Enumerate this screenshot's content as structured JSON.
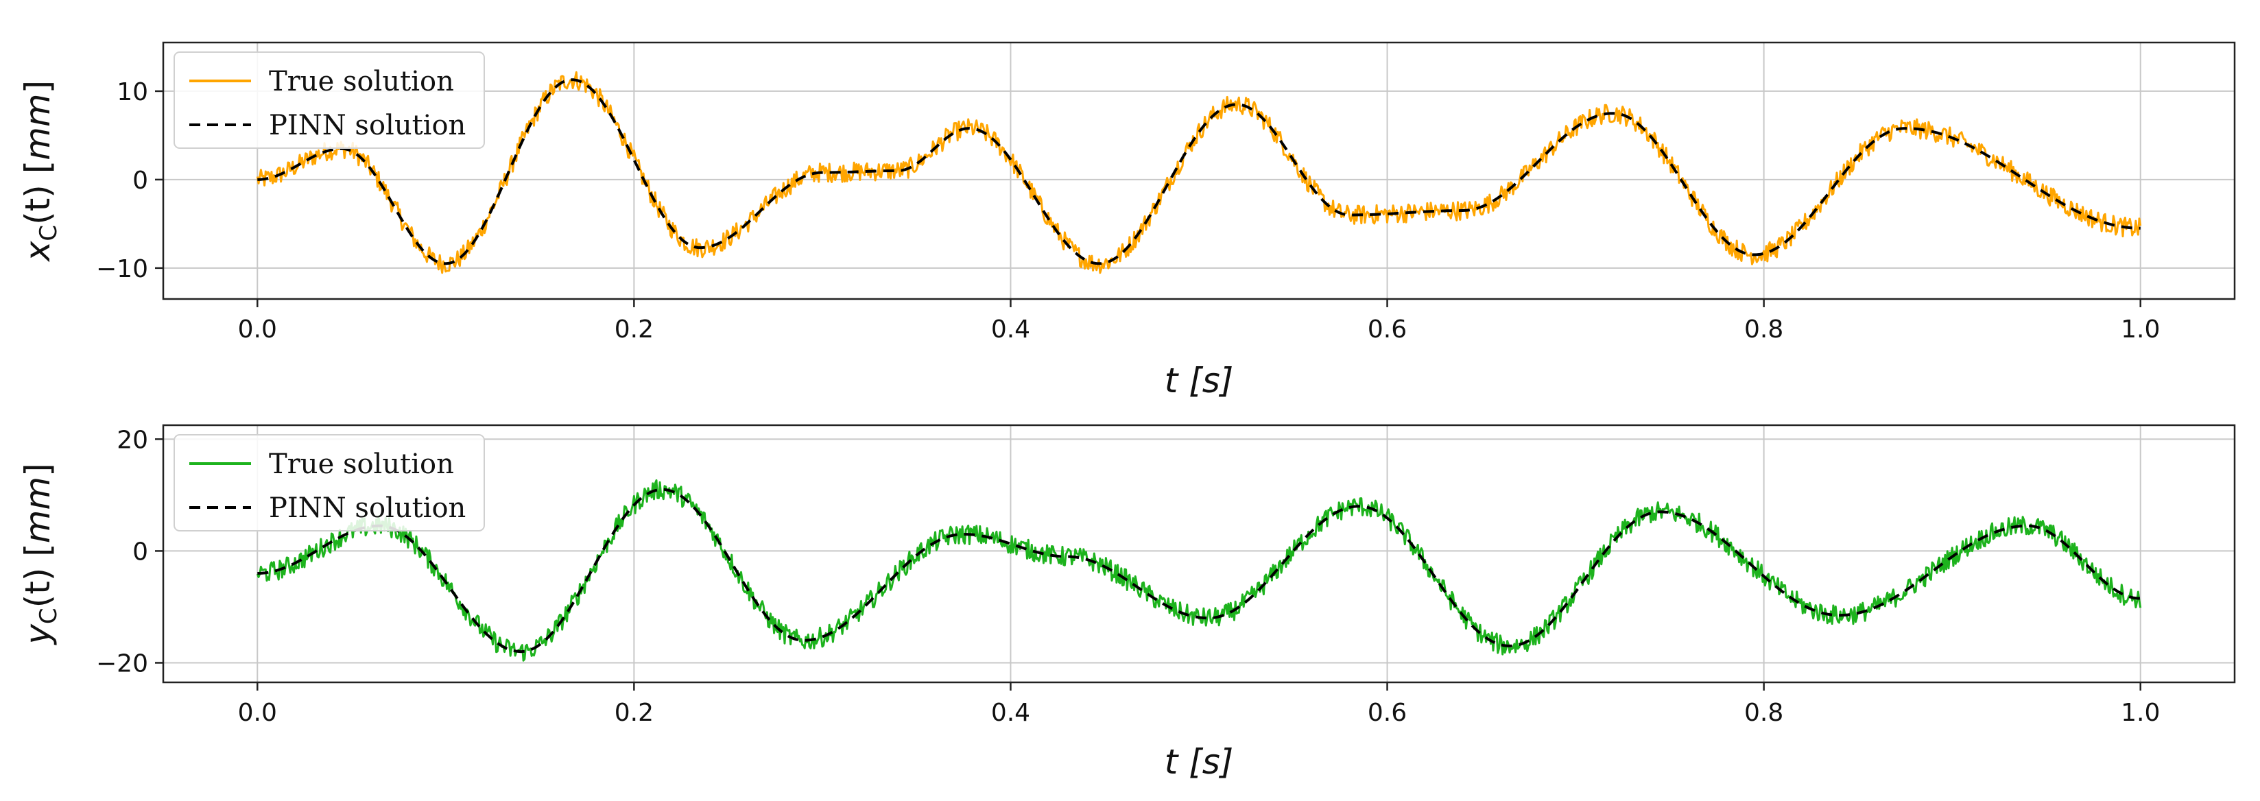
{
  "chart_data": [
    {
      "type": "line",
      "xlabel": "t [s]",
      "ylabel": "x_C(t) [mm]",
      "ylabel_parts": {
        "var": "x",
        "sub": "C",
        "arg": "(t) [",
        "unit": "mm",
        "close": "]"
      },
      "xlim": [
        -0.05,
        1.05
      ],
      "ylim": [
        -13.5,
        15.5
      ],
      "xticks": [
        0.0,
        0.2,
        0.4,
        0.6,
        0.8,
        1.0
      ],
      "xtick_labels": [
        "0.0",
        "0.2",
        "0.4",
        "0.6",
        "0.8",
        "1.0"
      ],
      "yticks": [
        -10,
        0,
        10
      ],
      "ytick_labels": [
        "−10",
        "0",
        "10"
      ],
      "grid": true,
      "legend": "top-left",
      "noise_amplitude": 1.1,
      "series": [
        {
          "name": "True solution",
          "color": "#FFA500",
          "style": "solid",
          "noisy": true,
          "x": [
            0.0,
            0.045,
            0.1,
            0.167,
            0.235,
            0.3,
            0.34,
            0.378,
            0.447,
            0.52,
            0.58,
            0.64,
            0.72,
            0.795,
            0.875,
            1.0
          ],
          "y": [
            0.0,
            3.5,
            -9.5,
            11.3,
            -7.7,
            0.8,
            1.0,
            5.8,
            -9.5,
            8.5,
            -4.0,
            -3.5,
            7.5,
            -8.5,
            5.8,
            -5.5
          ]
        },
        {
          "name": "PINN solution",
          "color": "#000000",
          "style": "dashed",
          "noisy": false,
          "x": [
            0.0,
            0.045,
            0.1,
            0.167,
            0.235,
            0.3,
            0.34,
            0.378,
            0.447,
            0.52,
            0.58,
            0.64,
            0.72,
            0.795,
            0.875,
            1.0
          ],
          "y": [
            0.0,
            3.5,
            -9.5,
            11.3,
            -7.7,
            0.8,
            1.0,
            5.8,
            -9.5,
            8.5,
            -4.0,
            -3.5,
            7.5,
            -8.5,
            5.8,
            -5.5
          ]
        }
      ]
    },
    {
      "type": "line",
      "xlabel": "t [s]",
      "ylabel": "y_C(t) [mm]",
      "ylabel_parts": {
        "var": "y",
        "sub": "C",
        "arg": "(t) [",
        "unit": "mm",
        "close": "]"
      },
      "xlim": [
        -0.05,
        1.05
      ],
      "ylim": [
        -23.5,
        22.5
      ],
      "xticks": [
        0.0,
        0.2,
        0.4,
        0.6,
        0.8,
        1.0
      ],
      "xtick_labels": [
        "0.0",
        "0.2",
        "0.4",
        "0.6",
        "0.8",
        "1.0"
      ],
      "yticks": [
        -20,
        0,
        20
      ],
      "ytick_labels": [
        "−20",
        "0",
        "20"
      ],
      "grid": true,
      "legend": "top-left",
      "noise_amplitude": 1.8,
      "series": [
        {
          "name": "True solution",
          "color": "#1DB31D",
          "style": "solid",
          "noisy": true,
          "x": [
            0.0,
            0.065,
            0.14,
            0.215,
            0.29,
            0.375,
            0.43,
            0.505,
            0.585,
            0.665,
            0.745,
            0.84,
            0.94,
            1.0
          ],
          "y": [
            -4.0,
            4.5,
            -18.0,
            11.0,
            -16.0,
            3.0,
            -1.0,
            -12.0,
            8.0,
            -17.0,
            7.0,
            -11.5,
            4.5,
            -8.5
          ]
        },
        {
          "name": "PINN solution",
          "color": "#000000",
          "style": "dashed",
          "noisy": false,
          "x": [
            0.0,
            0.065,
            0.14,
            0.215,
            0.29,
            0.375,
            0.43,
            0.505,
            0.585,
            0.665,
            0.745,
            0.84,
            0.94,
            1.0
          ],
          "y": [
            -4.0,
            4.5,
            -18.0,
            11.0,
            -16.0,
            3.0,
            -1.0,
            -12.0,
            8.0,
            -17.0,
            7.0,
            -11.5,
            4.5,
            -8.5
          ]
        }
      ]
    }
  ]
}
